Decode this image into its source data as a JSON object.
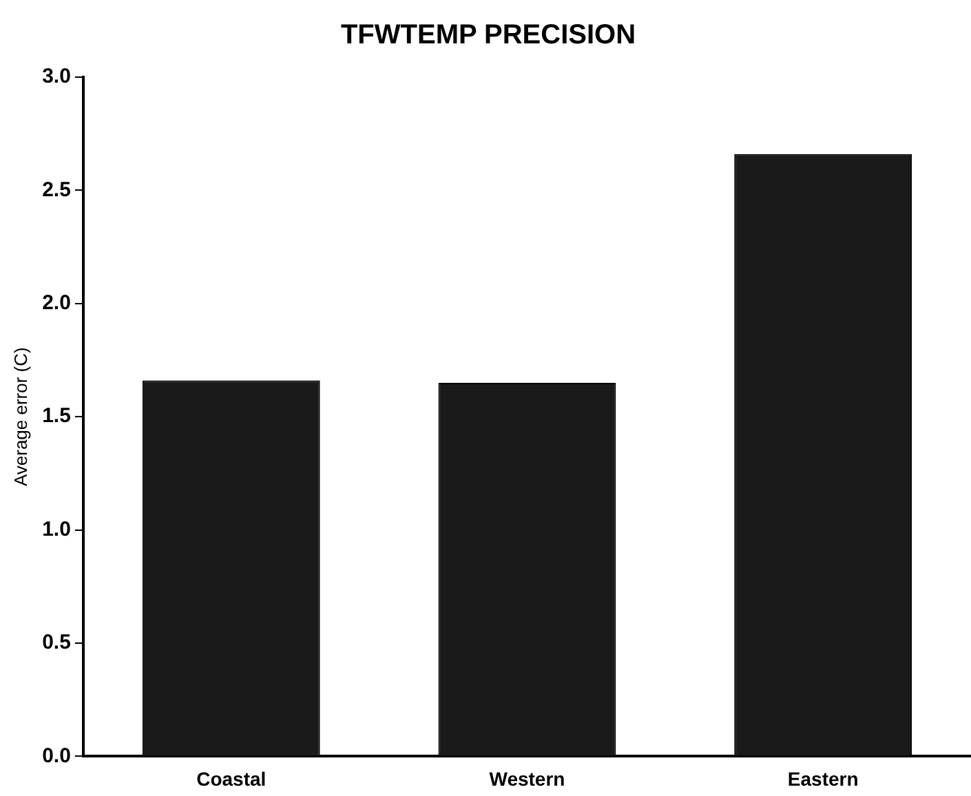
{
  "chart_data": {
    "type": "bar",
    "title": "TFWTEMP PRECISION",
    "ylabel": "Average error (C)",
    "categories": [
      "Coastal",
      "Western",
      "Eastern"
    ],
    "values": [
      1.66,
      1.65,
      2.66
    ],
    "color": "#1a1a1a",
    "ylim": [
      0,
      3
    ],
    "yticks": [
      {
        "value": 0,
        "label": "0.0"
      },
      {
        "value": 0.5,
        "label": "0.5"
      },
      {
        "value": 1,
        "label": "1.0"
      },
      {
        "value": 1.5,
        "label": "1.5"
      },
      {
        "value": 2,
        "label": "2.0"
      },
      {
        "value": 2.5,
        "label": "2.5"
      },
      {
        "value": 3,
        "label": "3.0"
      }
    ],
    "grid": false
  }
}
